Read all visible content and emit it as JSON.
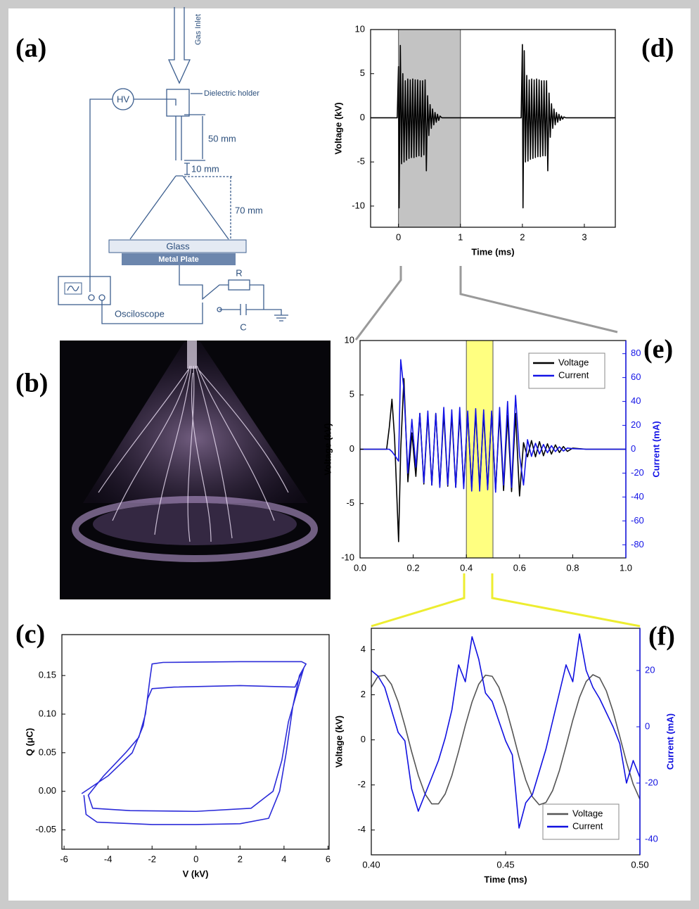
{
  "panels": [
    "(a)",
    "(b)",
    "(c)",
    "(d)",
    "(e)",
    "(f)"
  ],
  "schematic": {
    "gas_inlet": "Gas Inlet",
    "holder": "Dielectric holder",
    "hv": "HV",
    "len1": "50 mm",
    "len2": "10 mm",
    "len3": "70 mm",
    "glass": "Glass",
    "plate": "Metal Plate",
    "r": "R",
    "c": "C",
    "scope": "Osciloscope"
  },
  "chart_data": [
    {
      "type": "line",
      "xlabel": "Time (ms)",
      "ylabel": "Voltage (kV)",
      "xlim": [
        -0.45,
        3.5
      ],
      "ylim": [
        -12.4,
        10
      ],
      "xticks": [
        0,
        1,
        2,
        3
      ],
      "yticks": [
        -10,
        -5,
        0,
        5,
        10
      ],
      "highlight": [
        0,
        1
      ],
      "highlight_color": "#c3c3c3",
      "x": [
        -0.45,
        -0.02,
        0,
        0.01,
        0.03,
        0.05,
        0.07,
        0.09,
        0.11,
        0.13,
        0.15,
        0.17,
        0.19,
        0.21,
        0.23,
        0.25,
        0.27,
        0.29,
        0.31,
        0.33,
        0.35,
        0.37,
        0.39,
        0.41,
        0.43,
        0.45,
        0.47,
        0.49,
        0.51,
        0.53,
        0.55,
        0.57,
        0.59,
        0.61,
        0.63,
        0.65,
        0.67,
        0.7,
        1.98,
        2,
        2.01,
        2.03,
        2.05,
        2.07,
        2.09,
        2.11,
        2.13,
        2.15,
        2.17,
        2.19,
        2.21,
        2.23,
        2.25,
        2.27,
        2.29,
        2.31,
        2.33,
        2.35,
        2.37,
        2.39,
        2.41,
        2.43,
        2.45,
        2.47,
        2.49,
        2.51,
        2.53,
        2.55,
        2.57,
        2.59,
        2.61,
        2.63,
        2.65,
        2.67,
        2.7,
        3.5
      ],
      "series": [
        {
          "color": "#000000",
          "values": [
            0,
            0,
            5.8,
            -10.2,
            8.2,
            -5.2,
            5,
            -5,
            4.2,
            -4.8,
            4.4,
            -4.6,
            4.3,
            -4.5,
            4.4,
            -4.5,
            4.3,
            -4.4,
            4.3,
            -4.3,
            4.2,
            -4.4,
            4.2,
            -4.2,
            4.3,
            -6,
            2.5,
            -2,
            1.5,
            -1.2,
            1,
            -0.8,
            0.6,
            -0.5,
            0.4,
            -0.3,
            0.2,
            0,
            0,
            8.3,
            -10.2,
            7.6,
            -5,
            4.8,
            -4.9,
            4.3,
            -4.7,
            4.4,
            -4.6,
            4.3,
            -4.5,
            4.4,
            -4.4,
            4.3,
            -4.4,
            4.2,
            -4.3,
            4.2,
            -4.3,
            4.2,
            -6,
            2.8,
            -2.2,
            1.6,
            -1.2,
            1,
            -0.8,
            0.6,
            -0.5,
            0.4,
            -0.3,
            0.2,
            -0.15,
            0.1,
            0,
            0
          ]
        }
      ]
    },
    {
      "type": "line",
      "ylabel": "Voltage (kV)",
      "y2label": "Current (mA)",
      "xlim": [
        0,
        1
      ],
      "ylim": [
        -10,
        10
      ],
      "y2lim": [
        -91,
        91
      ],
      "xticks": [
        {
          "value": 0,
          "label": "0.0"
        },
        {
          "value": 0.2,
          "label": "0.2"
        },
        {
          "value": 0.4,
          "label": "0.4"
        },
        {
          "value": 0.6,
          "label": "0.6"
        },
        {
          "value": 0.8,
          "label": "0.8"
        },
        {
          "value": 1,
          "label": "1.0"
        }
      ],
      "yticks": [
        -10,
        -5,
        0,
        5,
        10
      ],
      "y2ticks": [
        -80,
        -60,
        -40,
        -20,
        0,
        20,
        40,
        60,
        80
      ],
      "highlight": [
        0.4,
        0.5
      ],
      "highlight_color": "#ffff80",
      "legend": "upper right",
      "x": [
        0,
        0.1,
        0.11,
        0.12,
        0.13,
        0.145,
        0.153,
        0.165,
        0.18,
        0.195,
        0.21,
        0.225,
        0.24,
        0.255,
        0.27,
        0.285,
        0.3,
        0.315,
        0.33,
        0.345,
        0.36,
        0.375,
        0.39,
        0.405,
        0.42,
        0.435,
        0.45,
        0.465,
        0.48,
        0.495,
        0.51,
        0.525,
        0.54,
        0.555,
        0.57,
        0.585,
        0.6,
        0.615,
        0.63,
        0.645,
        0.66,
        0.675,
        0.69,
        0.705,
        0.72,
        0.735,
        0.75,
        0.765,
        0.78,
        0.8,
        0.85,
        1.0
      ],
      "series": [
        {
          "name": "Voltage",
          "color": "#000000",
          "values": [
            0,
            0,
            2,
            4.6,
            1,
            -8.5,
            0,
            6.5,
            -3,
            1.5,
            -2.5,
            3.3,
            -3.2,
            3.2,
            -3.3,
            3.3,
            -3.4,
            3.3,
            -3.4,
            3.2,
            -3.5,
            3.3,
            -3.4,
            3.2,
            -3.5,
            3.3,
            -3.5,
            3.2,
            -3.6,
            3.3,
            -3.7,
            3.2,
            -3.8,
            3.1,
            -3.9,
            3.3,
            -4.3,
            0.6,
            -0.7,
            0.8,
            -0.7,
            0.7,
            -0.6,
            0.5,
            -0.45,
            0.4,
            -0.3,
            0.25,
            -0.2,
            0.1,
            0,
            0
          ]
        },
        {
          "name": "Current",
          "color": "#1414e6",
          "axis": "y2",
          "values": [
            0,
            0,
            0,
            -2,
            -5,
            -10,
            75,
            50,
            -20,
            25,
            -15,
            30,
            -28,
            32,
            -30,
            30,
            -32,
            35,
            -30,
            33,
            -32,
            35,
            -33,
            32,
            -35,
            34,
            -35,
            33,
            -34,
            32,
            -36,
            35,
            -30,
            40,
            -32,
            45,
            -5,
            -30,
            8,
            -6,
            5,
            -4,
            4,
            -3,
            3,
            -2,
            2,
            -1.5,
            1,
            0.5,
            0,
            0
          ]
        }
      ]
    },
    {
      "type": "line",
      "xlabel": "Time (ms)",
      "ylabel": "Voltage (kV)",
      "y2label": "Current (mA)",
      "xlim": [
        0.4,
        0.5
      ],
      "ylim": [
        -5.1,
        4.95
      ],
      "y2lim": [
        -45.5,
        35
      ],
      "xticks": [
        {
          "value": 0.4,
          "label": "0.40"
        },
        0.45,
        {
          "value": 0.5,
          "label": "0.50"
        }
      ],
      "yticks": [
        -4,
        -2,
        0,
        2,
        4
      ],
      "y2ticks": [
        -40,
        -20,
        0,
        20
      ],
      "legend": "lower right",
      "x": [
        0.4,
        0.4025,
        0.405,
        0.4075,
        0.41,
        0.4125,
        0.415,
        0.4175,
        0.42,
        0.4225,
        0.425,
        0.4275,
        0.43,
        0.4325,
        0.435,
        0.4375,
        0.44,
        0.4425,
        0.445,
        0.4475,
        0.45,
        0.4525,
        0.455,
        0.4575,
        0.46,
        0.4625,
        0.465,
        0.4675,
        0.47,
        0.4725,
        0.475,
        0.4775,
        0.48,
        0.4825,
        0.485,
        0.4875,
        0.49,
        0.4925,
        0.495,
        0.4975,
        0.5
      ],
      "series": [
        {
          "name": "Voltage",
          "color": "#555555",
          "values": [
            2.33,
            2.82,
            2.86,
            2.46,
            1.68,
            0.63,
            -0.52,
            -1.58,
            -2.4,
            -2.84,
            -2.84,
            -2.4,
            -1.58,
            -0.51,
            0.64,
            1.68,
            2.47,
            2.87,
            2.82,
            2.33,
            1.47,
            0.39,
            -0.76,
            -1.78,
            -2.53,
            -2.88,
            -2.78,
            -2.25,
            -1.37,
            -0.27,
            0.87,
            1.88,
            2.59,
            2.89,
            2.75,
            2.17,
            1.26,
            0.15,
            -0.99,
            -1.97,
            -2.64
          ]
        },
        {
          "name": "Current",
          "color": "#1010e0",
          "axis": "y2",
          "values": [
            20,
            18,
            14,
            6,
            -2,
            -5,
            -22,
            -30,
            -24,
            -18,
            -12,
            -4,
            6,
            22,
            16,
            32,
            24,
            12,
            9,
            2,
            -5,
            -10,
            -36,
            -27,
            -24,
            -16,
            -8,
            2,
            12,
            22,
            16,
            33,
            20,
            14,
            10,
            5,
            0,
            -6,
            -20,
            -12,
            -18
          ]
        }
      ]
    },
    {
      "type": "line",
      "xlabel": "V (kV)",
      "ylabel": "Q (μC)",
      "xlim": [
        -6.1,
        6.05
      ],
      "ylim": [
        -0.075,
        0.203
      ],
      "xticks": [
        -6,
        -4,
        -2,
        0,
        2,
        4,
        6
      ],
      "yticks": [
        -0.05,
        {
          "value": 0,
          "label": "0.00"
        },
        0.05,
        {
          "value": 0.1,
          "label": "0.10"
        },
        0.15
      ],
      "x": [
        -5.1,
        -5.0,
        -4.5,
        -2,
        0,
        2,
        3.3,
        3.8,
        4.1,
        4.4,
        4.7,
        5.0,
        4.8,
        2,
        -1.5,
        -2,
        -2.1,
        -2.3,
        -2.6,
        -3.2,
        -4.2,
        -4.9,
        -4.7,
        -3,
        0,
        2.5,
        3.5,
        3.9,
        4.2,
        4.6,
        4.9,
        4.5,
        2,
        -1,
        -2,
        -2.2,
        -2.4,
        -2.9,
        -4,
        -5.2
      ],
      "series": [
        {
          "color": "#2b2bd9",
          "values": [
            -0.005,
            -0.03,
            -0.04,
            -0.043,
            -0.043,
            -0.042,
            -0.035,
            0,
            0.05,
            0.11,
            0.15,
            0.165,
            0.168,
            0.168,
            0.167,
            0.165,
            0.145,
            0.1,
            0.07,
            0.05,
            0.02,
            -0.005,
            -0.022,
            -0.025,
            -0.026,
            -0.022,
            0,
            0.04,
            0.09,
            0.13,
            0.16,
            0.135,
            0.137,
            0.135,
            0.133,
            0.12,
            0.085,
            0.05,
            0.02,
            -0.003
          ]
        }
      ]
    }
  ]
}
